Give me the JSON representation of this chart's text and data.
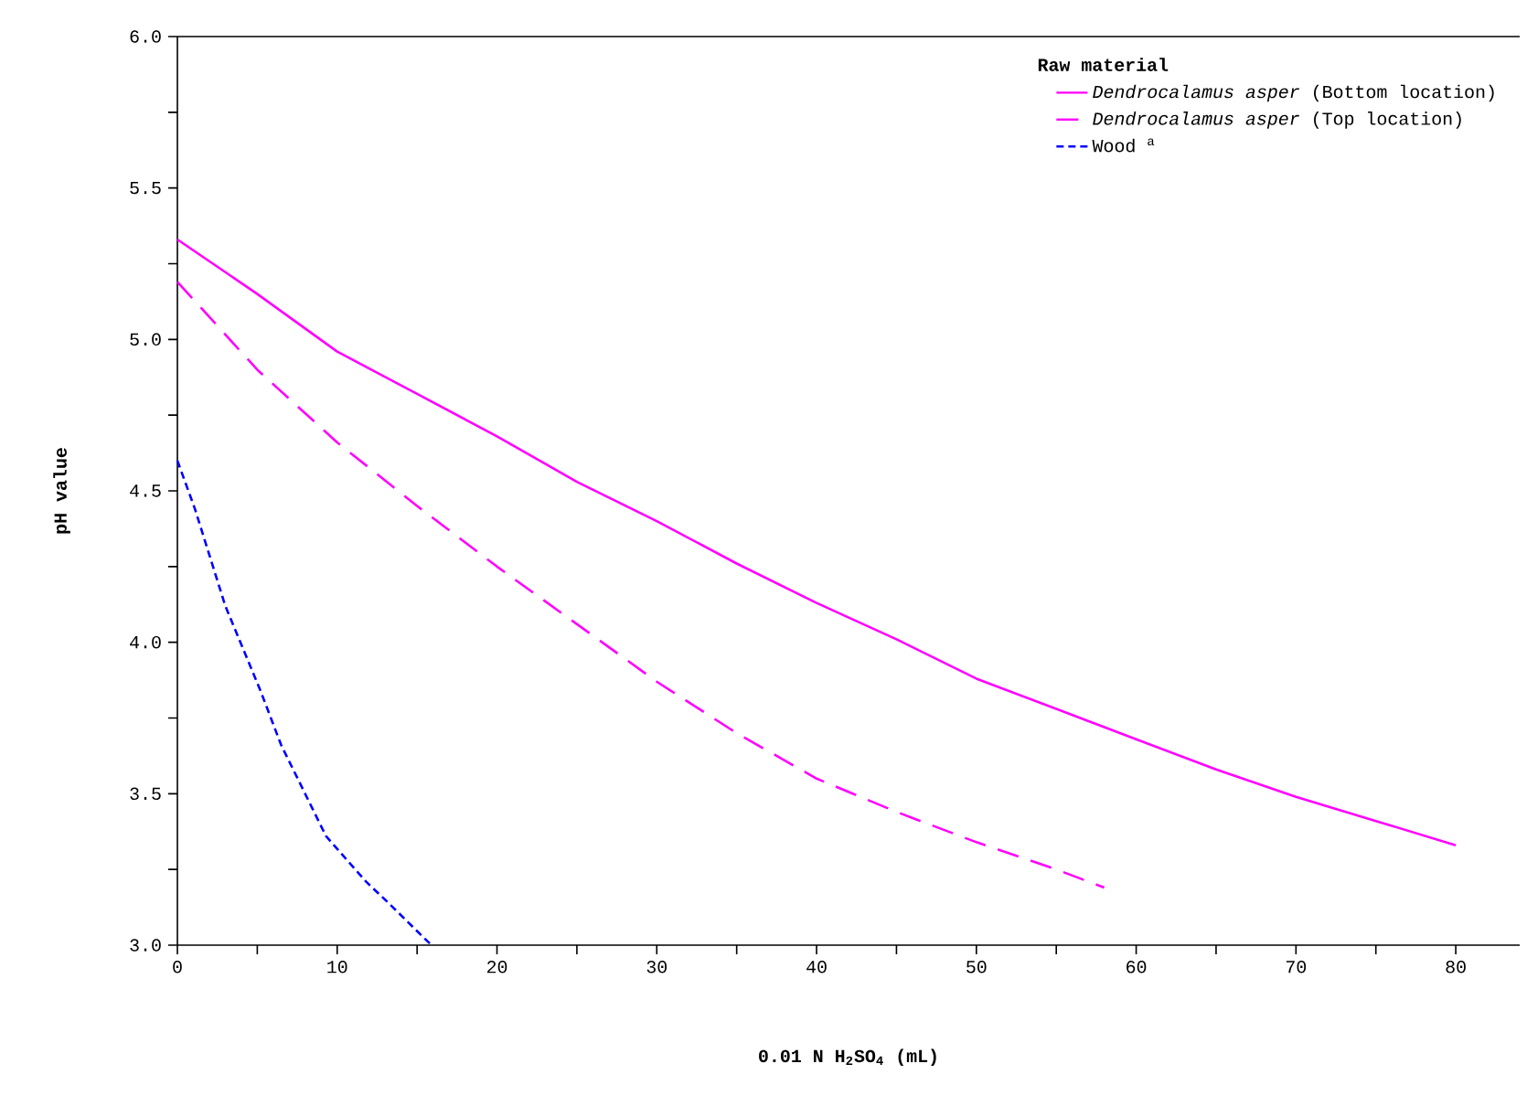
{
  "chart_data": {
    "type": "line",
    "xlabel": "0.01 N H$_{2}$SO$_{4}$ (mL)",
    "ylabel": "pH value",
    "legend_title": "Raw material",
    "xlim": [
      0,
      84
    ],
    "ylim": [
      3.0,
      6.0
    ],
    "xticks": [
      0,
      {
        "value": 5,
        "label": null
      },
      10,
      {
        "value": 15,
        "label": null
      },
      20,
      {
        "value": 25,
        "label": null
      },
      30,
      {
        "value": 35,
        "label": null
      },
      40,
      {
        "value": 45,
        "label": null
      },
      50,
      {
        "value": 55,
        "label": null
      },
      60,
      {
        "value": 65,
        "label": null
      },
      70,
      {
        "value": 75,
        "label": null
      },
      80
    ],
    "yticks": [
      {
        "value": 3,
        "label": "3.0"
      },
      {
        "value": 3.25,
        "label": null
      },
      3.5,
      {
        "value": 3.75,
        "label": null
      },
      {
        "value": 4,
        "label": "4.0"
      },
      {
        "value": 4.25,
        "label": null
      },
      4.5,
      {
        "value": 4.75,
        "label": null
      },
      {
        "value": 5,
        "label": "5.0"
      },
      {
        "value": 5.25,
        "label": null
      },
      5.5,
      {
        "value": 5.75,
        "label": null
      },
      {
        "value": 6,
        "label": "6.0"
      }
    ],
    "grid": false,
    "legend": "top right",
    "marker": "none",
    "series": [
      {
        "name": "*Dendrocalamus asper* (Bottom location)",
        "color": "#ff00ff",
        "line_style": "solid",
        "x": [
          0,
          5,
          10,
          15,
          20,
          25,
          30,
          35,
          40,
          45,
          50,
          55,
          60,
          65,
          70,
          75,
          80
        ],
        "values": [
          5.33,
          5.15,
          4.96,
          4.82,
          4.68,
          4.53,
          4.4,
          4.26,
          4.13,
          4.01,
          3.88,
          3.78,
          3.68,
          3.58,
          3.49,
          3.41,
          3.33
        ]
      },
      {
        "name": "*Dendrocalamus asper* (Top location)",
        "color": "#ff00ff",
        "line_style": "dashed",
        "x": [
          0,
          5,
          10,
          15,
          20,
          25,
          30,
          35,
          40,
          45,
          50,
          55,
          58
        ],
        "values": [
          5.19,
          4.9,
          4.66,
          4.45,
          4.25,
          4.06,
          3.87,
          3.7,
          3.55,
          3.44,
          3.34,
          3.25,
          3.19
        ]
      },
      {
        "name": "Wood $^{a}$",
        "color": "#0000ff",
        "line_style": "dotted",
        "x": [
          0,
          1.1,
          3,
          5.2,
          6.5,
          9.3,
          11.8,
          13,
          15.9
        ],
        "values": [
          4.6,
          4.44,
          4.12,
          3.84,
          3.66,
          3.36,
          3.21,
          3.15,
          3.0
        ]
      }
    ]
  }
}
